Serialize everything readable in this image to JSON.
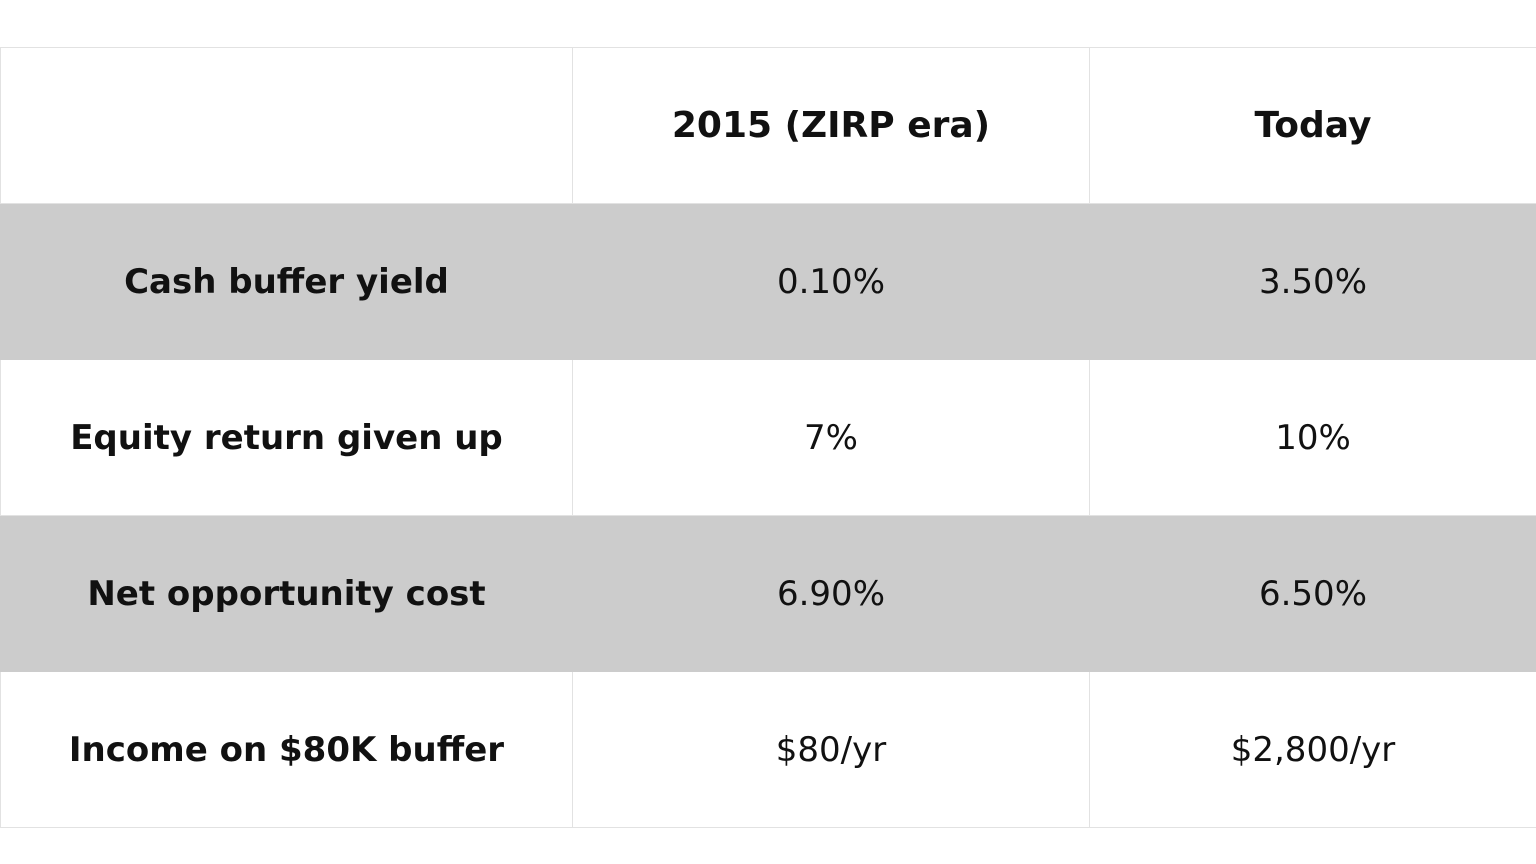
{
  "table": {
    "header": [
      "",
      "2015 (ZIRP era)",
      "Today"
    ],
    "rows": [
      [
        "Cash buffer yield",
        "0.10%",
        "3.50%"
      ],
      [
        "Equity return given up",
        "7%",
        "10%"
      ],
      [
        "Net opportunity cost",
        "6.90%",
        "6.50%"
      ],
      [
        "Income on $80K buffer",
        "$80/yr",
        "$2,800/yr"
      ]
    ]
  }
}
